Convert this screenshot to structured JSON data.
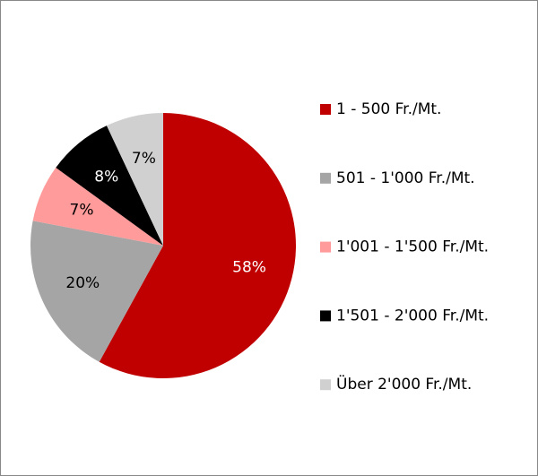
{
  "chart_data": {
    "type": "pie",
    "categories": [
      "1 - 500 Fr./Mt.",
      "501 - 1'000 Fr./Mt.",
      "1'001 - 1'500 Fr./Mt.",
      "1'501 - 2'000 Fr./Mt.",
      "Über 2'000 Fr./Mt."
    ],
    "values": [
      58,
      20,
      7,
      8,
      7
    ],
    "value_labels": [
      "58%",
      "20%",
      "7%",
      "8%",
      "7%"
    ],
    "colors": [
      "#c00000",
      "#a5a5a5",
      "#ff9b9b",
      "#000000",
      "#d0d0d0"
    ],
    "legend": "right"
  }
}
